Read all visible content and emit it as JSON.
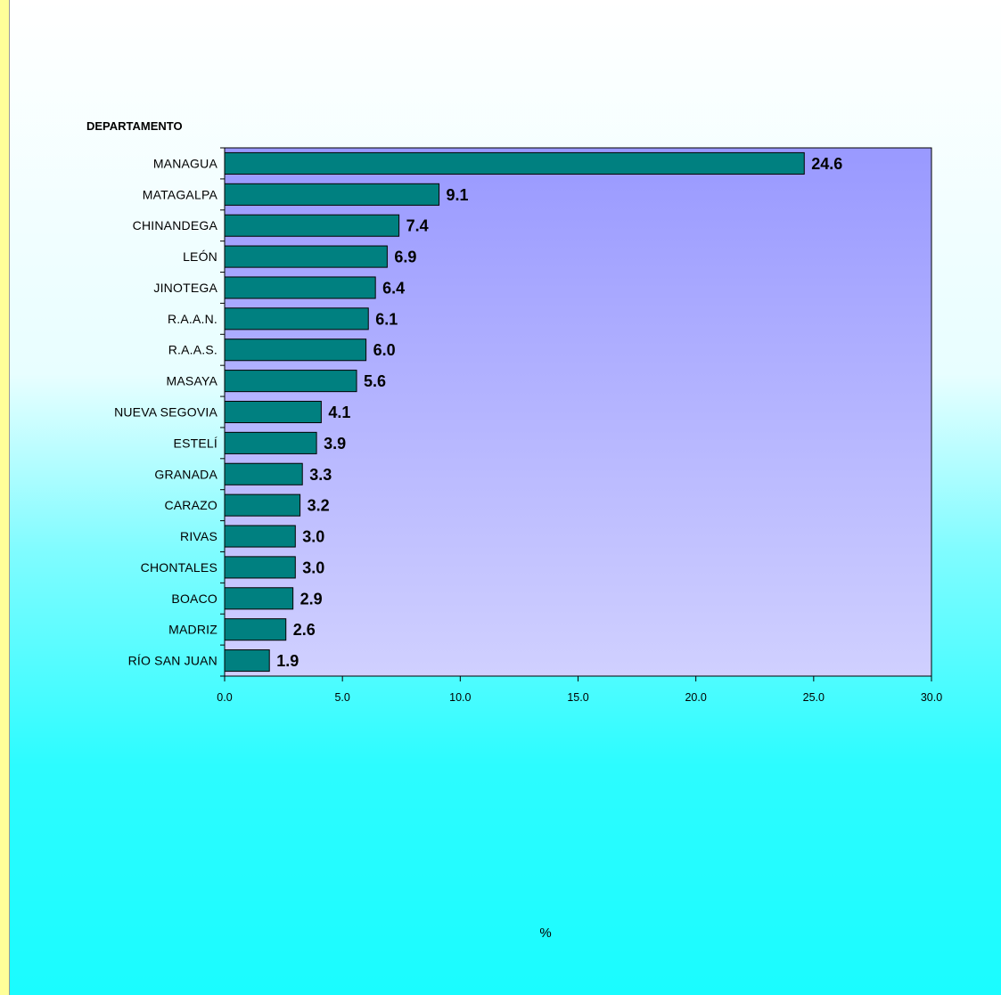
{
  "chart_data": {
    "type": "bar",
    "orientation": "horizontal",
    "ylabel": "DEPARTAMENTO",
    "xlabel": "%",
    "xlim": [
      0,
      30
    ],
    "xticks": [
      "0.0",
      "5.0",
      "10.0",
      "15.0",
      "20.0",
      "25.0",
      "30.0"
    ],
    "grid": false,
    "categories": [
      "MANAGUA",
      "MATAGALPA",
      "CHINANDEGA",
      "LEÓN",
      "JINOTEGA",
      "R.A.A.N.",
      "R.A.A.S.",
      "MASAYA",
      "NUEVA SEGOVIA",
      "ESTELÍ",
      "GRANADA",
      "CARAZO",
      "RIVAS",
      "CHONTALES",
      "BOACO",
      "MADRIZ",
      "RÍO SAN JUAN"
    ],
    "values": [
      24.6,
      9.1,
      7.4,
      6.9,
      6.4,
      6.1,
      6.0,
      5.6,
      4.1,
      3.9,
      3.3,
      3.2,
      3.0,
      3.0,
      2.9,
      2.6,
      1.9
    ],
    "value_labels": [
      "24.6",
      "9.1",
      "7.4",
      "6.9",
      "6.4",
      "6.1",
      "6.0",
      "5.6",
      "4.1",
      "3.9",
      "3.3",
      "3.2",
      "3.0",
      "3.0",
      "2.9",
      "2.6",
      "1.9"
    ],
    "colors": {
      "bar": "#008080",
      "plot_top": "#9999ff",
      "plot_bottom": "#ccccff",
      "frame_border": "#ffff99"
    }
  }
}
